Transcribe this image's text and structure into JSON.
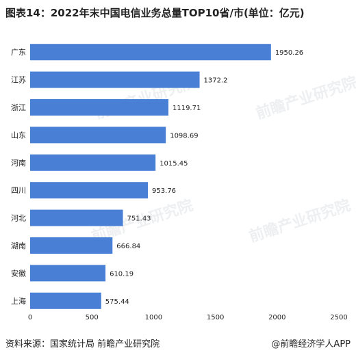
{
  "chart_data": {
    "type": "bar",
    "orientation": "horizontal",
    "title": "图表14：2022年末中国电信业务总量TOP10省/市(单位：亿元)",
    "categories": [
      "广东",
      "江苏",
      "浙江",
      "山东",
      "河南",
      "四川",
      "河北",
      "湖南",
      "安徽",
      "上海"
    ],
    "values": [
      1950.26,
      1372.2,
      1119.71,
      1098.69,
      1015.45,
      953.76,
      751.43,
      666.84,
      610.19,
      575.44
    ],
    "value_labels": [
      "1950.26",
      "1372.2",
      "1119.71",
      "1098.69",
      "1015.45",
      "953.76",
      "751.43",
      "666.84",
      "610.19",
      "575.44"
    ],
    "x_ticks": [
      "0",
      "500",
      "1000",
      "1500",
      "2000",
      "2500"
    ],
    "xlim": [
      0,
      2500
    ],
    "xlabel": "",
    "ylabel": "",
    "grid": false,
    "legend": "none",
    "bar_color": "#4a7fd6"
  },
  "watermark": "前瞻产业研究院",
  "footer": {
    "source": "资料来源：国家统计局 前瞻产业研究院",
    "brand": "@前瞻经济学人APP"
  }
}
